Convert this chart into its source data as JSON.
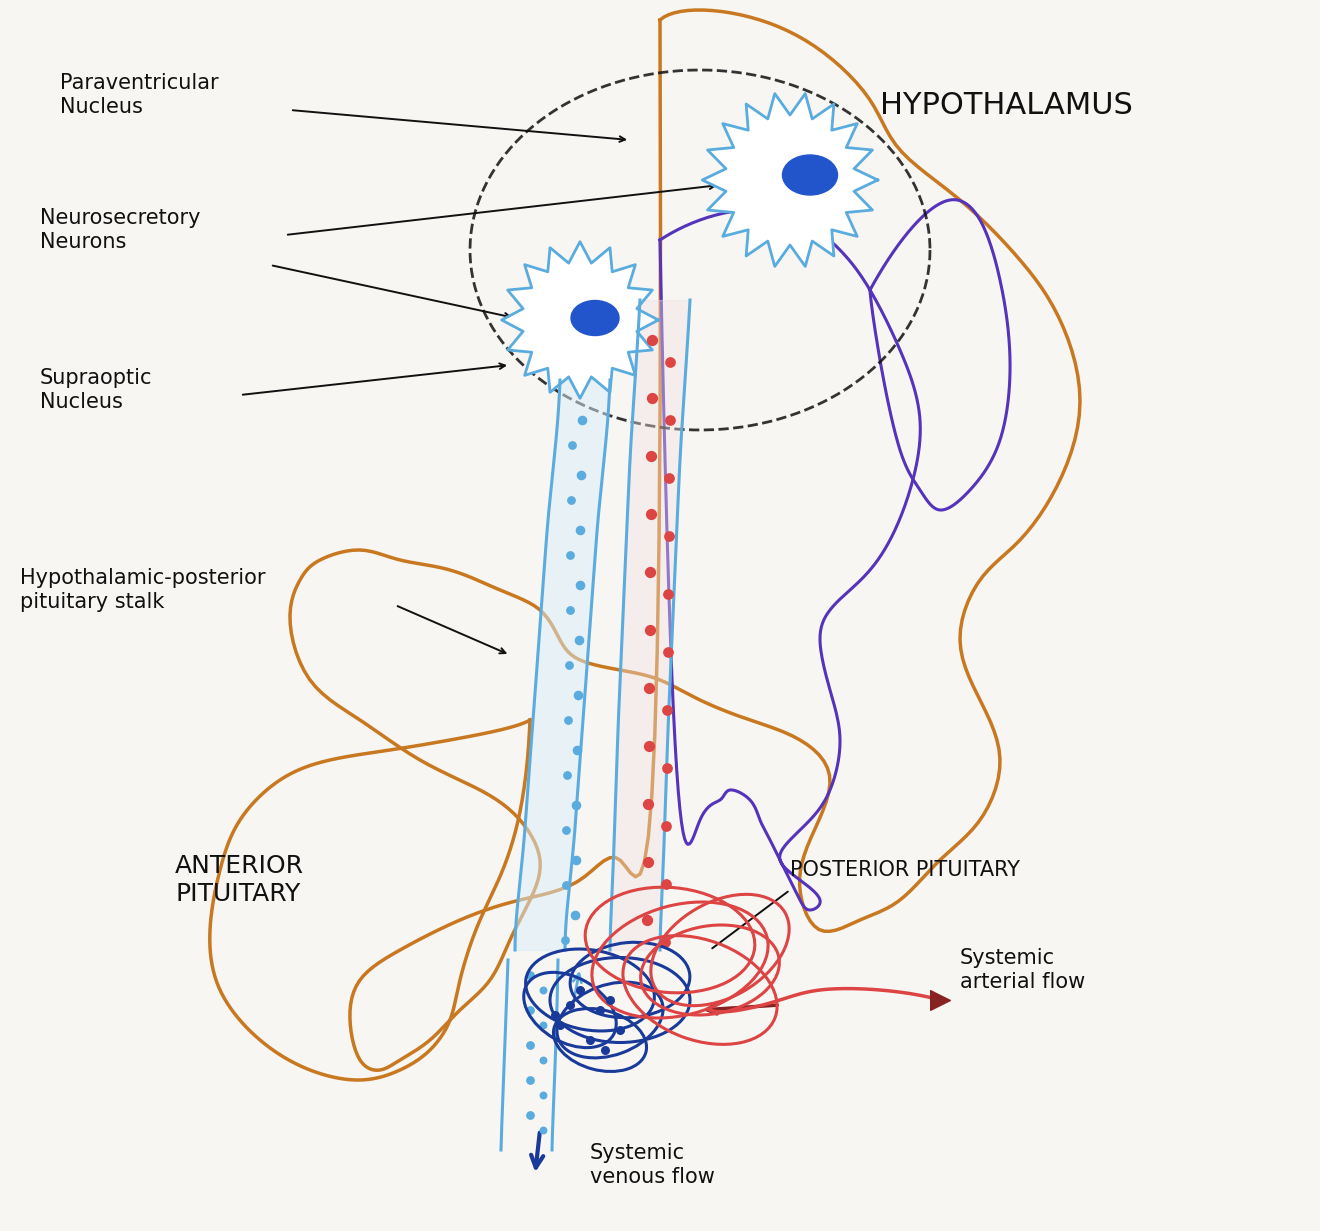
{
  "bg_color": "#f8f6f3",
  "hypothalamus_label": "HYPOTHALAMUS",
  "paraventricular_label": "Paraventricular\nNucleus",
  "neurosecretory_label": "Neurosecretory\nNeurons",
  "supraoptic_label": "Supraoptic\nNucleus",
  "stalk_label": "Hypothalamic-posterior\npituitary stalk",
  "anterior_pituitary_label": "ANTERIOR\nPITUITARY",
  "posterior_pituitary_label": "POSTERIOR PITUITARY",
  "systemic_arterial_label": "Systemic\narterial flow",
  "systemic_venous_label": "Systemic\nvenous flow",
  "blue": "#5aabde",
  "dark_blue": "#1a3a9a",
  "red": "#dd4444",
  "dark_red": "#882222",
  "purple": "#5533bb",
  "orange": "#c87820",
  "black": "#111111",
  "cell_blue": "#2255cc",
  "stalk_fill": "#d8eefa"
}
